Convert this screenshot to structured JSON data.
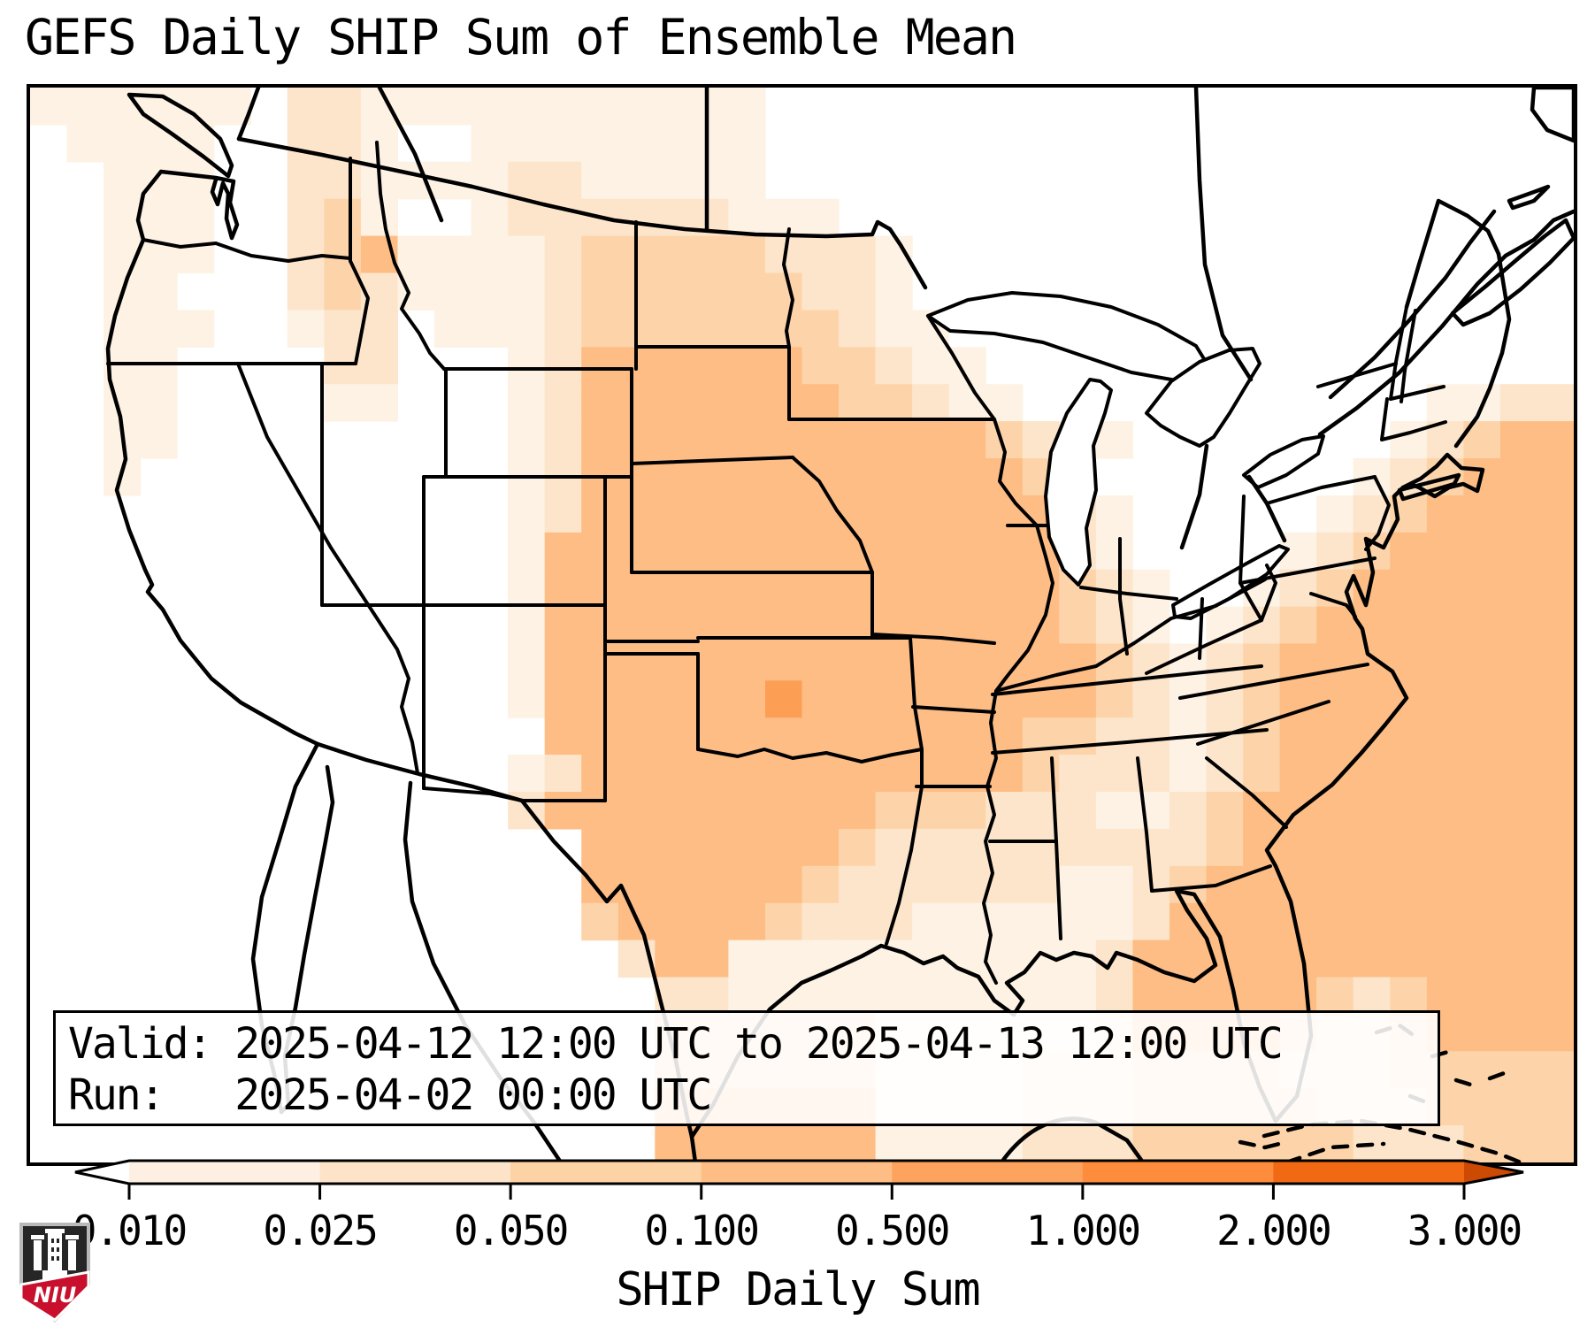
{
  "title": "GEFS Daily SHIP Sum of Ensemble Mean",
  "info_box": {
    "valid_line": "Valid: 2025-04-12 12:00 UTC to 2025-04-13 12:00 UTC",
    "run_line": "Run:   2025-04-02 00:00 UTC"
  },
  "colorbar": {
    "label": "SHIP Daily Sum",
    "extend": "both",
    "tick_labels": [
      "0.010",
      "0.025",
      "0.050",
      "0.100",
      "0.500",
      "1.000",
      "2.000",
      "3.000"
    ],
    "under_color": "#ffffff",
    "segment_colors": [
      "#fdf0e2",
      "#fde3c8",
      "#fdd2a5",
      "#fdbd85",
      "#fda35e",
      "#fd8c3c",
      "#f16913"
    ],
    "over_color": "#cc4a04"
  },
  "logo": {
    "text": "NIU",
    "red": "#c8102e",
    "dark": "#262626"
  },
  "map_data": {
    "type": "heatmap",
    "field": "SHIP Daily Sum of Ensemble Mean",
    "classes": [
      "<0.010",
      "0.010-0.025",
      "0.025-0.050",
      "0.050-0.100",
      "0.100-0.500",
      "0.500-1.000"
    ],
    "level_colors": {
      "1": "#fdf2e4",
      "2": "#fde5cb",
      "3": "#fdd4aa",
      "4": "#fdbd85",
      "5": "#fd9e55"
    },
    "grid": {
      "cols": 42,
      "rows": 29,
      "cell_levels": [
        "111111022111111111110000000000000000000000",
        "011110022100111111110000000000000000000000",
        "001110022111122111110000000000000000000000",
        "001110023100122222211100000000000000000000",
        "001110023411112333332221000000000000000000",
        "001100023211112333333221000000000000000000",
        "001110012201112333333321100000000000000000",
        "001100002200012444444332110000000000000000",
        "001100001100012444444433211000000000001122",
        "001100000000012444444444443211000000012344",
        "001000000000012444444444444310000000123444",
        "000000000000012444444444444421000001234444",
        "000000000000014444444444444421000012344444",
        "000000000000014444444444444432100123444444",
        "000000000000014444444444444432101234444444",
        "000000000000014444444444444443212344444444",
        "000000000000014444445444444443212344444444",
        "000000000000004444444444444332212344444444",
        "000000000000012444444444444322212344444444",
        "000000000000024444444443332221123444444444",
        "000000000000000444444432222222223444444444",
        "000000000000000444444322222211234444444444",
        "000000000000000344443222111111244444444444",
        "000000000000000024411111111112444444444444",
        "000000000000000002211111111112444443234444",
        "000000000000000003333331111112444432234444",
        "000000000000000003333331111222333322233333",
        "000000000000000004444441111222333332223333",
        "000000000000000004444441111222333333222333"
      ]
    }
  }
}
